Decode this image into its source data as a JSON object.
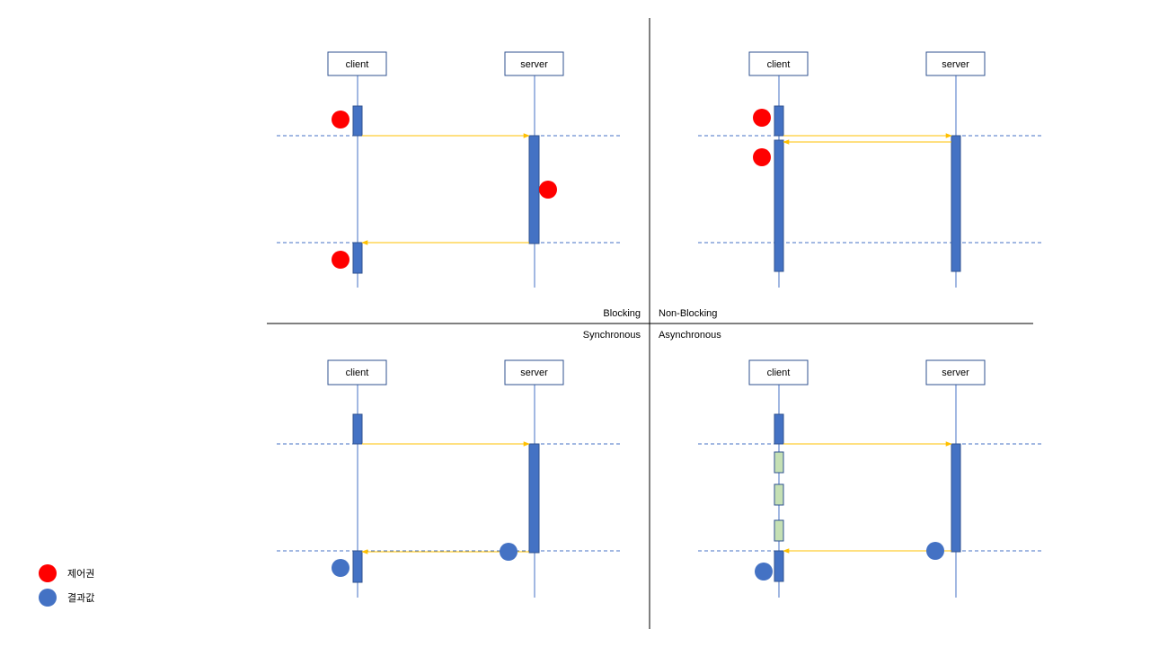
{
  "labels": {
    "blocking": "Blocking",
    "non_blocking": "Non-Blocking",
    "synchronous": "Synchronous",
    "asynchronous": "Asynchronous"
  },
  "diagrams": [
    {
      "client": "client",
      "server": "server"
    },
    {
      "client": "client",
      "server": "server"
    },
    {
      "client": "client",
      "server": "server"
    },
    {
      "client": "client",
      "server": "server"
    }
  ],
  "legend": [
    {
      "label": "제어권",
      "color": "#ff0000"
    },
    {
      "label": "결과값",
      "color": "#4472c4"
    }
  ],
  "colors": {
    "control": "#ff0000",
    "result": "#4472c4",
    "activation": "#4472c4",
    "activation_alt": "#c5e0b4",
    "message": "#ffc000"
  }
}
